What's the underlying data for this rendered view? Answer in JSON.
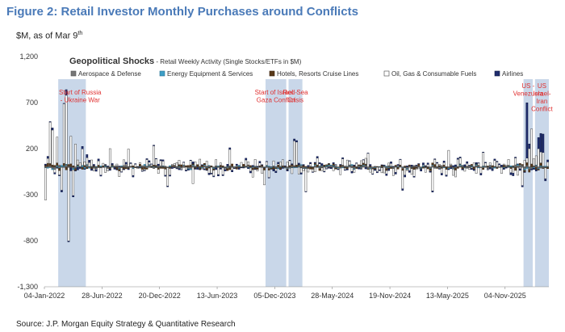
{
  "figure": {
    "title": "Figure 2: Retail Investor Monthly Purchases around Conflicts",
    "subtitle_main": "$M, as of Mar 9",
    "subtitle_sup": "th",
    "source": "Source: J.P. Morgan Equity Strategy & Quantitative Research"
  },
  "chart_data": {
    "type": "bar",
    "stacked": true,
    "title": "Geopolitical Shocks",
    "subtitle": " - Retail Weekly Activity (Single Stocks/ETFs in $M)",
    "ylim": [
      -1300,
      1200
    ],
    "yticks": [
      {
        "value": 1200,
        "label": "1,200"
      },
      {
        "value": 700,
        "label": "700"
      },
      {
        "value": 200,
        "label": "200"
      },
      {
        "value": -300,
        "label": "-300"
      },
      {
        "value": -800,
        "label": "-800"
      },
      {
        "value": -1300,
        "label": "-1,300"
      }
    ],
    "n_weeks": 219,
    "xticks": [
      {
        "week": 0,
        "label": "04-Jan-2022"
      },
      {
        "week": 25,
        "label": "28-Jun-2022"
      },
      {
        "week": 50,
        "label": "20-Dec-2022"
      },
      {
        "week": 75,
        "label": "13-Jun-2023"
      },
      {
        "week": 100,
        "label": "05-Dec-2023"
      },
      {
        "week": 125,
        "label": "28-May-2024"
      },
      {
        "week": 150,
        "label": "19-Nov-2024"
      },
      {
        "week": 175,
        "label": "13-May-2025"
      },
      {
        "week": 200,
        "label": "04-Nov-2025"
      }
    ],
    "legend": [
      {
        "name": "Aerospace & Defense",
        "color": "#777777",
        "border": "#555555"
      },
      {
        "name": "Energy Equipment & Services",
        "color": "#3d9fc6",
        "border": "#2a6f8f"
      },
      {
        "name": "Hotels, Resorts Cruise Lines",
        "color": "#5a3a1a",
        "border": "#3a2410"
      },
      {
        "name": "Oil, Gas & Consumable Fuels",
        "color": "#ffffff",
        "border": "#444444"
      },
      {
        "name": "Airlines",
        "color": "#1f2d6e",
        "border": "#101a44"
      }
    ],
    "shaded_periods": [
      {
        "start_week": 6,
        "end_week": 18,
        "label_lines": [
          "Start of Russia",
          "- Ukraine War"
        ]
      },
      {
        "start_week": 96,
        "end_week": 105,
        "label_lines": [
          "Start of Israel -",
          "Gaza Conflict"
        ]
      },
      {
        "start_week": 106,
        "end_week": 112,
        "label_lines": [
          "Red Sea",
          "Crisis"
        ]
      },
      {
        "start_week": 208,
        "end_week": 212,
        "label_lines": [
          "US -",
          "Venezuela"
        ]
      },
      {
        "start_week": 213,
        "end_week": 219,
        "label_lines": [
          "US",
          "Israel-",
          "Iran",
          "Conflict"
        ]
      }
    ],
    "notable_weeks": [
      {
        "week": 0,
        "oil_gas": -350,
        "airlines": 0
      },
      {
        "week": 2,
        "oil_gas": 450,
        "airlines": 0
      },
      {
        "week": 3,
        "oil_gas": 380,
        "airlines": 0
      },
      {
        "week": 5,
        "oil_gas": 280,
        "airlines": 0
      },
      {
        "week": 7,
        "oil_gas": -250,
        "airlines": 0
      },
      {
        "week": 8,
        "oil_gas": 650,
        "airlines": 0
      },
      {
        "week": 9,
        "oil_gas": 750,
        "airlines": 60
      },
      {
        "week": 10,
        "oil_gas": -800,
        "airlines": 0
      },
      {
        "week": 11,
        "oil_gas": 300,
        "airlines": 0
      },
      {
        "week": 12,
        "oil_gas": -280,
        "airlines": 0
      },
      {
        "week": 13,
        "oil_gas": 250,
        "airlines": 0
      },
      {
        "week": 16,
        "oil_gas": 180,
        "airlines": 0
      },
      {
        "week": 28,
        "oil_gas": 200,
        "airlines": 0
      },
      {
        "week": 36,
        "oil_gas": 190,
        "airlines": 0
      },
      {
        "week": 47,
        "oil_gas": 210,
        "airlines": 0
      },
      {
        "week": 53,
        "oil_gas": -200,
        "airlines": 0
      },
      {
        "week": 64,
        "oil_gas": -180,
        "airlines": 0
      },
      {
        "week": 80,
        "oil_gas": 180,
        "airlines": 0
      },
      {
        "week": 95,
        "oil_gas": -160,
        "airlines": 0
      },
      {
        "week": 108,
        "oil_gas": 270,
        "airlines": 20
      },
      {
        "week": 109,
        "oil_gas": 250,
        "airlines": 0
      },
      {
        "week": 113,
        "oil_gas": -250,
        "airlines": 0
      },
      {
        "week": 140,
        "oil_gas": 150,
        "airlines": 0
      },
      {
        "week": 155,
        "oil_gas": -200,
        "airlines": 0
      },
      {
        "week": 168,
        "oil_gas": -260,
        "airlines": 0
      },
      {
        "week": 175,
        "oil_gas": 180,
        "airlines": 0
      },
      {
        "week": 190,
        "oil_gas": 150,
        "airlines": 0
      },
      {
        "week": 207,
        "oil_gas": -200,
        "airlines": 0
      },
      {
        "week": 209,
        "oil_gas": 50,
        "airlines": 600
      },
      {
        "week": 210,
        "oil_gas": 200,
        "airlines": 50
      },
      {
        "week": 211,
        "oil_gas": 380,
        "airlines": 0
      },
      {
        "week": 213,
        "oil_gas": 100,
        "airlines": 0
      },
      {
        "week": 214,
        "oil_gas": 200,
        "airlines": 120
      },
      {
        "week": 215,
        "oil_gas": 120,
        "airlines": 200
      },
      {
        "week": 216,
        "oil_gas": 150,
        "airlines": 200
      },
      {
        "week": 217,
        "oil_gas": -120,
        "airlines": 0
      }
    ]
  }
}
